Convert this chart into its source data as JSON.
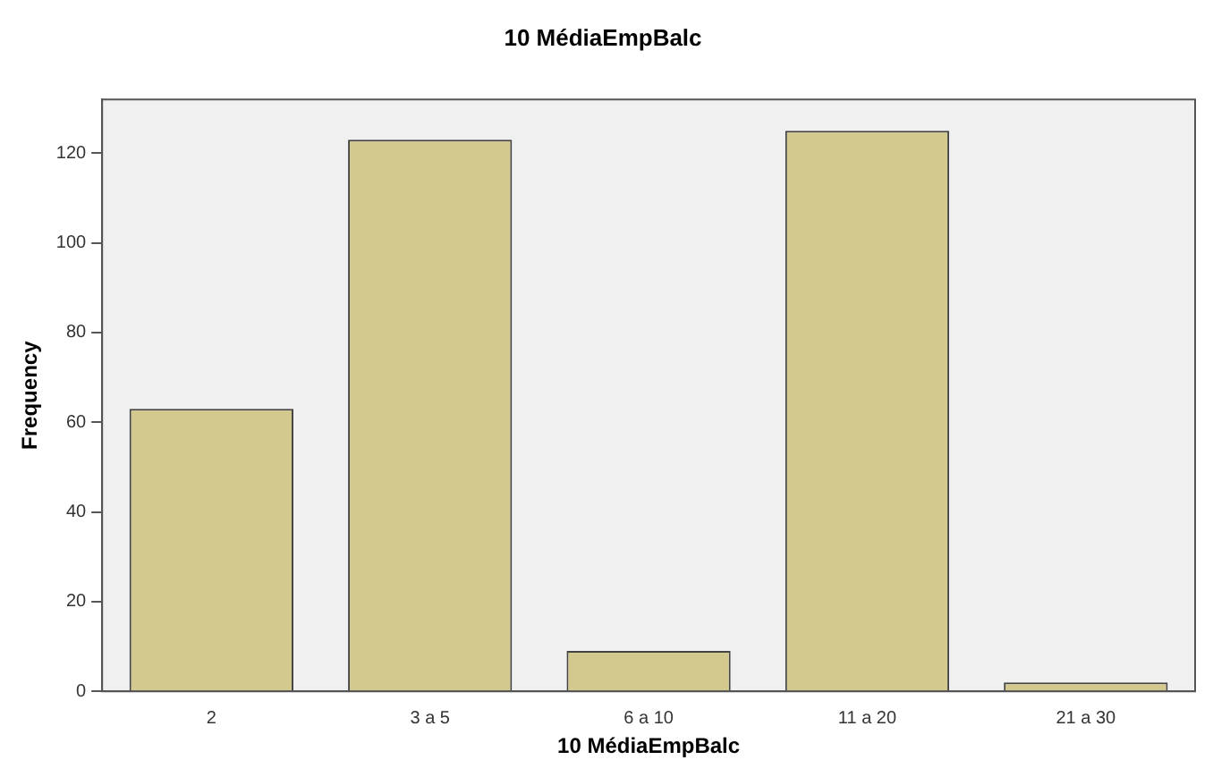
{
  "chart_data": {
    "type": "bar",
    "title": "10 MédiaEmpBalc",
    "xlabel": "10 MédiaEmpBalc",
    "ylabel": "Frequency",
    "categories": [
      "2",
      "3 a 5",
      "6 a 10",
      "11 a 20",
      "21 a 30"
    ],
    "values": [
      63,
      123,
      9,
      125,
      2
    ],
    "color": "#d3c98f",
    "ylim": [
      0,
      132
    ],
    "yticks": [
      0,
      20,
      40,
      60,
      80,
      100,
      120
    ],
    "grid": false,
    "legend": false
  }
}
